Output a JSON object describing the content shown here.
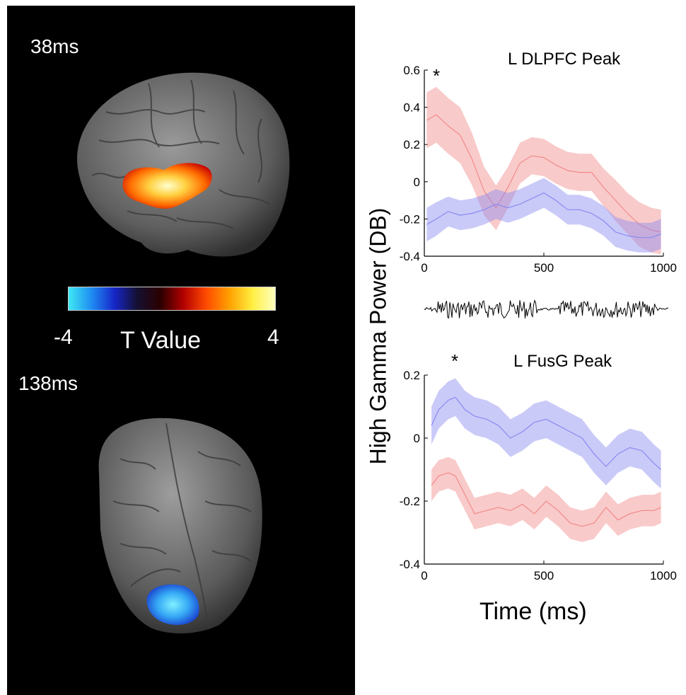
{
  "left": {
    "time_top": "38ms",
    "time_bottom": "138ms",
    "colorbar": {
      "title": "T Value",
      "min_label": "-4",
      "max_label": "4",
      "colors": [
        "#3ee8f2",
        "#1f8cf2",
        "#1626c8",
        "#151030",
        "#2a0000",
        "#b20000",
        "#ff4a00",
        "#ffa000",
        "#ffee40",
        "#ffffc0"
      ]
    }
  },
  "ylabel": "High Gamma Power (DB)",
  "xlabel": "Time (ms)",
  "chart_data": [
    {
      "type": "line",
      "title": "L DLPFC Peak",
      "annotation": "*",
      "xlim": [
        0,
        1000
      ],
      "ylim": [
        -0.4,
        0.6
      ],
      "xticks": [
        "0",
        "500",
        "1000"
      ],
      "yticks": [
        "0.6",
        "0.4",
        "0.2",
        "0",
        "-0.2",
        "-0.4"
      ],
      "x": [
        10,
        50,
        100,
        150,
        200,
        250,
        300,
        350,
        400,
        450,
        500,
        550,
        600,
        650,
        700,
        750,
        800,
        850,
        900,
        950,
        990
      ],
      "series": [
        {
          "color": "#f28a8a",
          "values": [
            0.33,
            0.36,
            0.3,
            0.25,
            0.12,
            -0.05,
            -0.14,
            -0.03,
            0.1,
            0.14,
            0.13,
            0.09,
            0.06,
            0.05,
            0.05,
            -0.03,
            -0.1,
            -0.17,
            -0.23,
            -0.26,
            -0.27
          ],
          "band": [
            0.15,
            0.15,
            0.15,
            0.15,
            0.14,
            0.13,
            0.12,
            0.11,
            0.11,
            0.1,
            0.1,
            0.1,
            0.1,
            0.1,
            0.1,
            0.1,
            0.11,
            0.11,
            0.12,
            0.12,
            0.12
          ]
        },
        {
          "color": "#8a8af2",
          "values": [
            -0.23,
            -0.2,
            -0.16,
            -0.18,
            -0.17,
            -0.15,
            -0.12,
            -0.14,
            -0.12,
            -0.09,
            -0.06,
            -0.1,
            -0.15,
            -0.15,
            -0.17,
            -0.21,
            -0.27,
            -0.29,
            -0.3,
            -0.3,
            -0.28
          ],
          "band": [
            0.09,
            0.09,
            0.08,
            0.08,
            0.08,
            0.08,
            0.08,
            0.08,
            0.08,
            0.08,
            0.08,
            0.08,
            0.08,
            0.08,
            0.08,
            0.08,
            0.08,
            0.08,
            0.08,
            0.08,
            0.08
          ]
        }
      ]
    },
    {
      "type": "line",
      "title": "L FusG Peak",
      "annotation": "*",
      "xlim": [
        0,
        1000
      ],
      "ylim": [
        -0.4,
        0.2
      ],
      "xticks": [
        "0",
        "500",
        "1000"
      ],
      "yticks": [
        "0.2",
        "0",
        "-0.2",
        "-0.4"
      ],
      "x": [
        30,
        60,
        100,
        130,
        170,
        210,
        260,
        310,
        360,
        410,
        460,
        510,
        560,
        610,
        660,
        710,
        760,
        810,
        860,
        910,
        960,
        990
      ],
      "series": [
        {
          "color": "#8a8af2",
          "values": [
            0.04,
            0.09,
            0.12,
            0.13,
            0.09,
            0.07,
            0.06,
            0.04,
            0.0,
            0.02,
            0.05,
            0.06,
            0.04,
            0.02,
            0.0,
            -0.05,
            -0.09,
            -0.05,
            -0.03,
            -0.04,
            -0.08,
            -0.1
          ],
          "band": [
            0.06,
            0.06,
            0.06,
            0.06,
            0.06,
            0.06,
            0.06,
            0.06,
            0.06,
            0.06,
            0.06,
            0.06,
            0.06,
            0.06,
            0.06,
            0.06,
            0.06,
            0.06,
            0.06,
            0.06,
            0.06,
            0.06
          ]
        },
        {
          "color": "#f28a8a",
          "values": [
            -0.15,
            -0.12,
            -0.11,
            -0.12,
            -0.18,
            -0.24,
            -0.23,
            -0.22,
            -0.23,
            -0.21,
            -0.24,
            -0.2,
            -0.23,
            -0.27,
            -0.28,
            -0.27,
            -0.22,
            -0.26,
            -0.24,
            -0.23,
            -0.23,
            -0.22
          ],
          "band": [
            0.05,
            0.05,
            0.05,
            0.05,
            0.05,
            0.05,
            0.05,
            0.05,
            0.05,
            0.05,
            0.05,
            0.05,
            0.05,
            0.05,
            0.05,
            0.05,
            0.05,
            0.05,
            0.05,
            0.05,
            0.05,
            0.05
          ]
        }
      ]
    }
  ]
}
